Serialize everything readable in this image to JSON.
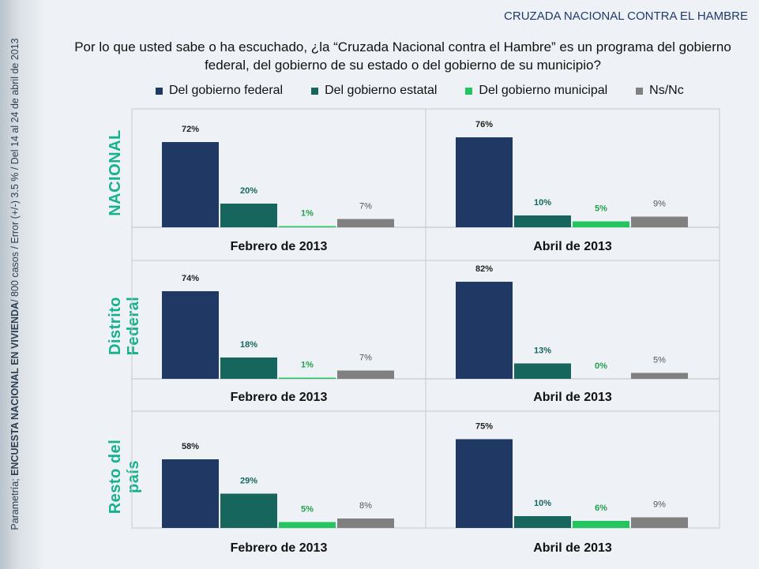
{
  "header": {
    "top_right": "CRUZADA NACIONAL CONTRA EL HAMBRE",
    "question": "Por lo que usted sabe o ha escuchado, ¿la “Cruzada Nacional contra el Hambre” es un programa del gobierno federal, del gobierno de su estado o del gobierno de su municipio?"
  },
  "sidebar": {
    "prefix": "Parametría; ",
    "bold": "ENCUESTA NACIONAL EN VIVIENDA",
    "suffix": "/ 800 casos / Error (+/-) 3.5 % / Del 14 al 24 de abril de 2013"
  },
  "legend": [
    {
      "label": "Del gobierno federal",
      "color": "#1f3864"
    },
    {
      "label": "Del gobierno estatal",
      "color": "#17665e"
    },
    {
      "label": "Del gobierno municipal",
      "color": "#22c55e"
    },
    {
      "label": "Ns/Nc",
      "color": "#808080"
    }
  ],
  "chart_data": [
    {
      "type": "bar",
      "row": "NACIONAL",
      "xlabel": "Febrero de 2013",
      "categories": [
        "Del gobierno federal",
        "Del gobierno estatal",
        "Del gobierno municipal",
        "Ns/Nc"
      ],
      "values": [
        72,
        20,
        1,
        7
      ],
      "labels": [
        "72%",
        "20%",
        "1%",
        "7%"
      ]
    },
    {
      "type": "bar",
      "row": "NACIONAL",
      "xlabel": "Abril de 2013",
      "categories": [
        "Del gobierno federal",
        "Del gobierno estatal",
        "Del gobierno municipal",
        "Ns/Nc"
      ],
      "values": [
        76,
        10,
        5,
        9
      ],
      "labels": [
        "76%",
        "10%",
        "5%",
        "9%"
      ]
    },
    {
      "type": "bar",
      "row": "Distrito Federal",
      "xlabel": "Febrero de 2013",
      "categories": [
        "Del gobierno federal",
        "Del gobierno estatal",
        "Del gobierno municipal",
        "Ns/Nc"
      ],
      "values": [
        74,
        18,
        1,
        7
      ],
      "labels": [
        "74%",
        "18%",
        "1%",
        "7%"
      ]
    },
    {
      "type": "bar",
      "row": "Distrito Federal",
      "xlabel": "Abril de 2013",
      "categories": [
        "Del gobierno federal",
        "Del gobierno estatal",
        "Del gobierno municipal",
        "Ns/Nc"
      ],
      "values": [
        82,
        13,
        0,
        5
      ],
      "labels": [
        "82%",
        "13%",
        "0%",
        "5%"
      ]
    },
    {
      "type": "bar",
      "row": "Resto del país",
      "xlabel": "Febrero de 2013",
      "categories": [
        "Del gobierno federal",
        "Del gobierno estatal",
        "Del gobierno municipal",
        "Ns/Nc"
      ],
      "values": [
        58,
        29,
        5,
        8
      ],
      "labels": [
        "58%",
        "29%",
        "5%",
        "8%"
      ]
    },
    {
      "type": "bar",
      "row": "Resto del país",
      "xlabel": "Abril de 2013",
      "categories": [
        "Del gobierno federal",
        "Del gobierno estatal",
        "Del gobierno municipal",
        "Ns/Nc"
      ],
      "values": [
        75,
        10,
        6,
        9
      ],
      "labels": [
        "75%",
        "10%",
        "6%",
        "9%"
      ]
    }
  ],
  "row_labels": [
    "NACIONAL",
    "Distrito Federal",
    "Resto del país"
  ]
}
